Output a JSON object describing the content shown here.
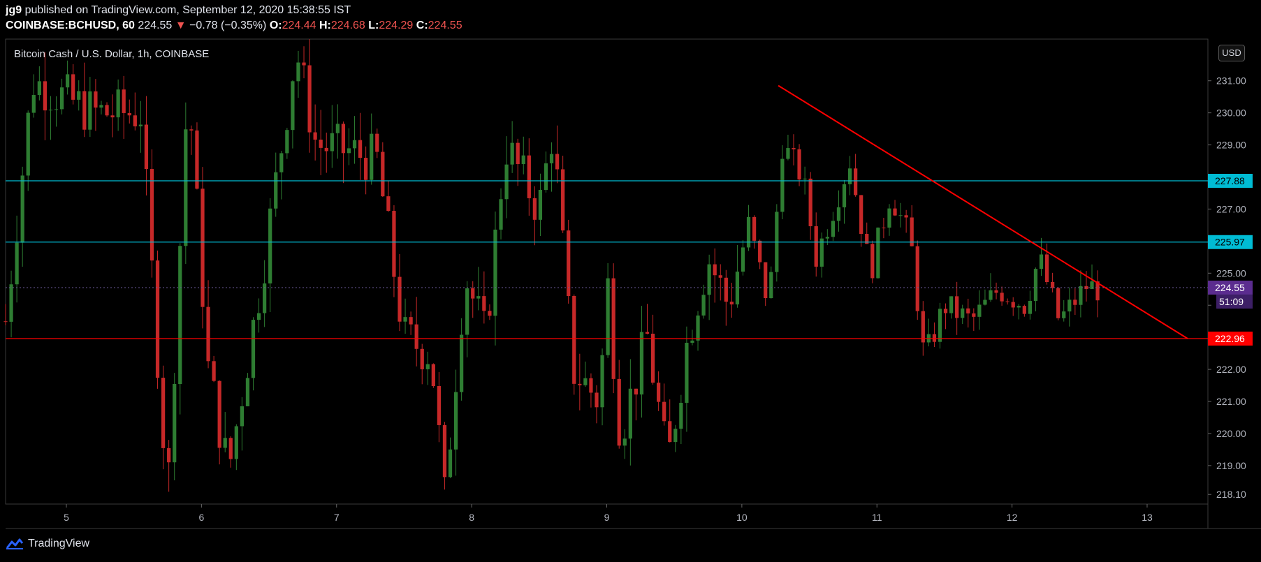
{
  "header": {
    "author": "jg9",
    "published": "published on TradingView.com, September 12, 2020 15:38:55 IST",
    "symbol": "COINBASE:BCHUSD, 60",
    "last": "224.55",
    "change_arrow": "▼",
    "change": "−0.78 (−0.35%)",
    "o_label": "O:",
    "o_val": "224.44",
    "h_label": "H:",
    "h_val": "224.68",
    "l_label": "L:",
    "l_val": "224.29",
    "c_label": "C:",
    "c_val": "224.55"
  },
  "footer": {
    "brand": "TradingView"
  },
  "price_scale": {
    "currency": "USD"
  },
  "colors": {
    "up": "#2e7d32",
    "down": "#c62828",
    "support": "#ff0000",
    "resistance": "#00bcd4",
    "trendline": "#ff0000",
    "current": "#5b2c8f"
  },
  "chart_data": {
    "type": "candlestick",
    "title": "Bitcoin Cash / U.S. Dollar, 1h, COINBASE",
    "x_ticks": [
      "5",
      "6",
      "7",
      "8",
      "9",
      "10",
      "11",
      "12",
      "13"
    ],
    "x_range_days": [
      4.55,
      13.45
    ],
    "y_ticks": [
      "218.10",
      "219.00",
      "220.00",
      "221.00",
      "222.00",
      "223.00",
      "224.00",
      "225.00",
      "226.00",
      "227.00",
      "228.00",
      "229.00",
      "230.00",
      "231.00"
    ],
    "ylim": [
      217.8,
      232.3
    ],
    "horizontal_lines": [
      {
        "value": 227.88,
        "label": "227.88",
        "color": "#00bcd4"
      },
      {
        "value": 225.97,
        "label": "225.97",
        "color": "#00bcd4"
      },
      {
        "value": 222.96,
        "label": "222.96",
        "color": "#ff0000"
      }
    ],
    "current_price": {
      "value": 224.55,
      "label": "224.55",
      "countdown": "51:09"
    },
    "trendline": {
      "start": [
        10.27,
        230.85
      ],
      "end": [
        13.3,
        222.96
      ]
    },
    "candle_count": 200,
    "first_day": 4.55,
    "hours_per_candle": 1
  }
}
